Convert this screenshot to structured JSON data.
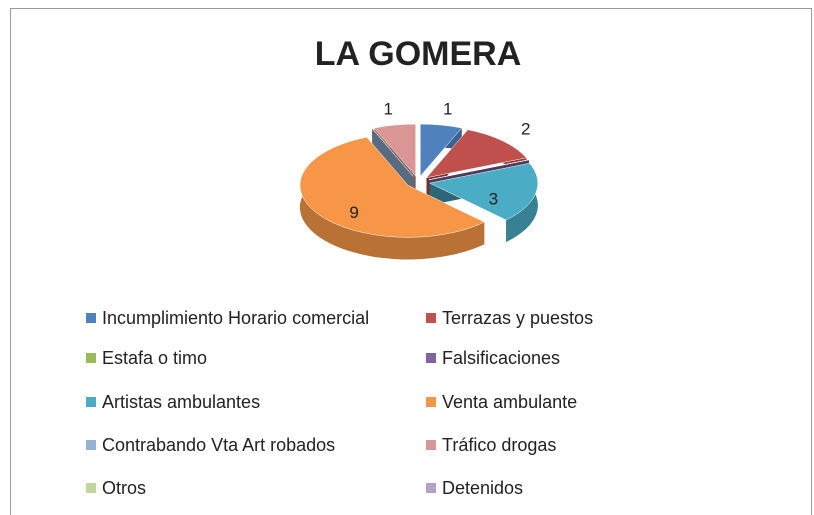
{
  "chart_data": {
    "type": "pie",
    "title": "LA GOMERA",
    "categories": [
      "Incumplimiento Horario comercial",
      "Terrazas y puestos",
      "Estafa o timo",
      "Falsificaciones",
      "Artistas ambulantes",
      "Venta ambulante",
      "Contrabando Vta Art robados",
      "Tráfico drogas",
      "Otros",
      "Detenidos"
    ],
    "values": [
      1,
      2,
      0,
      0,
      3,
      9,
      0,
      1,
      0,
      0
    ],
    "colors": [
      "#4f81bd",
      "#c0504d",
      "#9bbb59",
      "#8064a2",
      "#4bacc6",
      "#f79646",
      "#95b3d7",
      "#d99694",
      "#c3d69b",
      "#b3a2c7"
    ],
    "legend": "bottom"
  }
}
